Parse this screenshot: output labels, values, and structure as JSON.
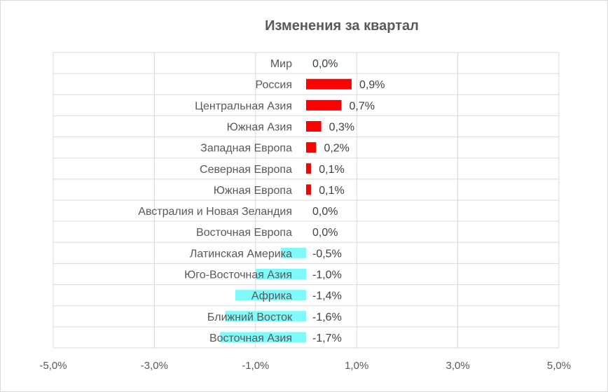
{
  "chart_data": {
    "type": "bar",
    "orientation": "horizontal",
    "title": "Изменения за квартал",
    "categories": [
      "Мир",
      "Россия",
      "Центральная Азия",
      "Южная Азия",
      "Западная Европа",
      "Северная Европа",
      "Южная Европа",
      "Австралия и Новая Зеландия",
      "Восточная Европа",
      "Латинская Америка",
      "Юго-Восточная Азия",
      "Африка",
      "Ближний Восток",
      "Восточная Азия"
    ],
    "values": [
      0.0,
      0.9,
      0.7,
      0.3,
      0.2,
      0.1,
      0.1,
      0.0,
      0.0,
      -0.5,
      -1.0,
      -1.4,
      -1.6,
      -1.7
    ],
    "data_labels": [
      "0,0%",
      "0,9%",
      "0,7%",
      "0,3%",
      "0,2%",
      "0,1%",
      "0,1%",
      "0,0%",
      "0,0%",
      "-0,5%",
      "-1,0%",
      "-1,4%",
      "-1,6%",
      "-1,7%"
    ],
    "xlim": [
      -5,
      5
    ],
    "x_ticks": [
      -5,
      -3,
      -1,
      1,
      3,
      5
    ],
    "x_tick_labels": [
      "-5,0%",
      "-3,0%",
      "-1,0%",
      "1,0%",
      "3,0%",
      "5,0%"
    ],
    "grid": true,
    "legend": "none",
    "colors": {
      "positive": "#ff0000",
      "negative": "#7ff9f9",
      "grid": "#d9d9d9",
      "text": "#595959",
      "title": "#595959"
    }
  }
}
